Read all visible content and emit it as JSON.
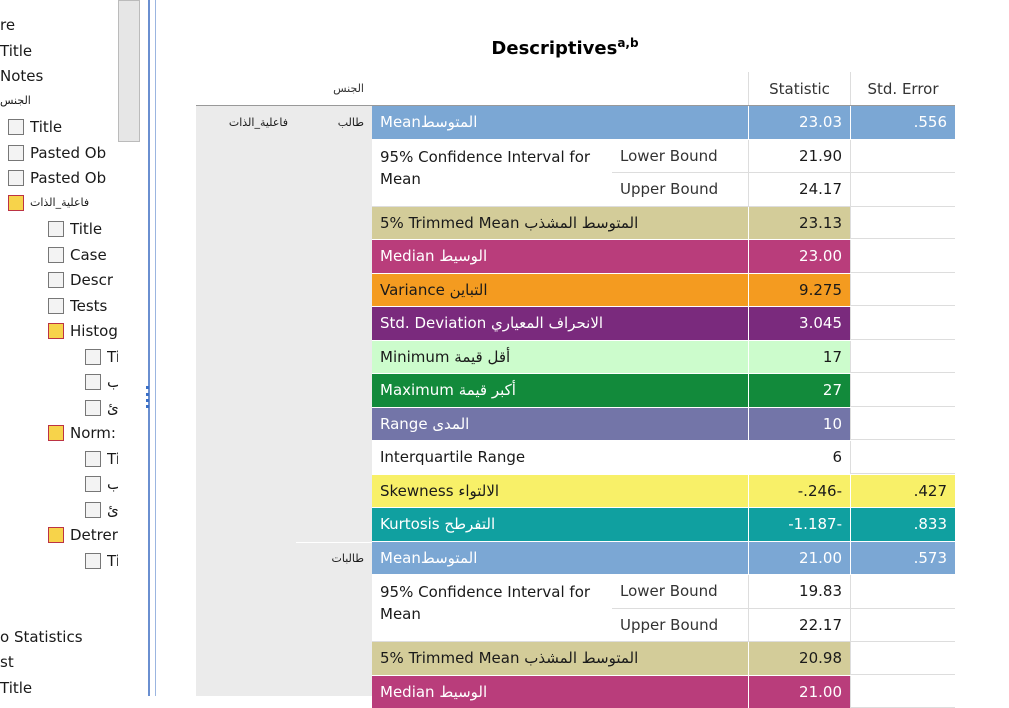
{
  "navigator": {
    "items": [
      "re",
      "Title",
      "Notes",
      "الجنس",
      "Title",
      "Pasted Ob",
      "Pasted Ob",
      "فاعلية_الذات",
      "Title",
      "Case",
      "Descr",
      "Tests",
      "Histog",
      "Ti",
      "ب",
      "ئ",
      "Norm:",
      "Ti",
      "ب",
      "ئ",
      "Detrer",
      "Ti",
      "o Statistics",
      "st",
      "Title"
    ]
  },
  "table": {
    "title": "Descriptives",
    "title_superscript": "a,b",
    "column_header": "الجنس",
    "headers": [
      "Statistic",
      "Std. Error"
    ],
    "row_group": "فاعلية_الذات",
    "groups": [
      {
        "label": "طالب",
        "rows": [
          {
            "label": "Meanالمتوسط",
            "statistic": "23.03",
            "std_error": ".556",
            "color": "#7ba7d4",
            "text_color": "#ffffff"
          },
          {
            "label": "95% Confidence Interval for Mean",
            "bounds": [
              {
                "label": "Lower Bound",
                "statistic": "21.90"
              },
              {
                "label": "Upper Bound",
                "statistic": "24.17"
              }
            ]
          },
          {
            "label": "5% Trimmed Mean المتوسط المشذب",
            "statistic": "23.13",
            "color": "#d3cc99",
            "text_color": "#1a1a1a"
          },
          {
            "label": "Median الوسيط",
            "statistic": "23.00",
            "color": "#b93d7b",
            "text_color": "#ffffff"
          },
          {
            "label": "Variance التباين",
            "statistic": "9.275",
            "color": "#f49b20",
            "text_color": "#1a1a1a"
          },
          {
            "label": "Std. Deviation الانحراف المعياري",
            "statistic": "3.045",
            "color": "#7a2a7d",
            "text_color": "#ffffff"
          },
          {
            "label": "Minimum أقل قيمة",
            "statistic": "17",
            "color": "#ccfccc",
            "text_color": "#1a1a1a"
          },
          {
            "label": "Maximum أكبر قيمة",
            "statistic": "27",
            "color": "#128a3b",
            "text_color": "#ffffff"
          },
          {
            "label": "Range المدى",
            "statistic": "10",
            "color": "#7375a8",
            "text_color": "#ffffff"
          },
          {
            "label": "Interquartile Range",
            "statistic": "6"
          },
          {
            "label": "Skewness الالتواء",
            "statistic": "-.246-",
            "std_error": ".427",
            "color": "#f8f068",
            "text_color": "#1a1a1a"
          },
          {
            "label": "Kurtosis التفرطح",
            "statistic": "-1.187-",
            "std_error": ".833",
            "color": "#10a0a0",
            "text_color": "#ffffff"
          }
        ]
      },
      {
        "label": "طالبات",
        "rows": [
          {
            "label": "Meanالمتوسط",
            "statistic": "21.00",
            "std_error": ".573",
            "color": "#7ba7d4",
            "text_color": "#ffffff"
          },
          {
            "label": "95% Confidence Interval for Mean",
            "bounds": [
              {
                "label": "Lower Bound",
                "statistic": "19.83"
              },
              {
                "label": "Upper Bound",
                "statistic": "22.17"
              }
            ]
          },
          {
            "label": "5% Trimmed Mean المتوسط المشذب",
            "statistic": "20.98",
            "color": "#d3cc99",
            "text_color": "#1a1a1a"
          },
          {
            "label": "Median الوسيط",
            "statistic": "21.00",
            "color": "#b93d7b",
            "text_color": "#ffffff"
          }
        ]
      }
    ]
  }
}
